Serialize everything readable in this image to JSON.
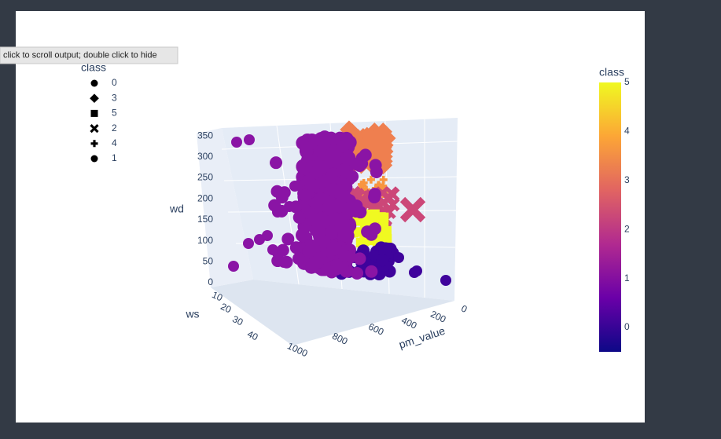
{
  "tooltip": "click to scroll output; double click to hide",
  "legend": {
    "title": "class",
    "items": [
      {
        "symbol": "circle",
        "label": "0"
      },
      {
        "symbol": "diamond",
        "label": "3"
      },
      {
        "symbol": "square",
        "label": "5"
      },
      {
        "symbol": "x",
        "label": "2"
      },
      {
        "symbol": "cross",
        "label": "4"
      },
      {
        "symbol": "circle",
        "label": "1"
      }
    ]
  },
  "axes": {
    "z": {
      "title": "wd",
      "ticks": [
        "0",
        "50",
        "100",
        "150",
        "200",
        "250",
        "300",
        "350"
      ]
    },
    "y": {
      "title": "ws",
      "ticks": [
        "10",
        "20",
        "30",
        "40"
      ]
    },
    "x": {
      "title": "pm_value",
      "ticks": [
        "0",
        "200",
        "400",
        "600",
        "800",
        "1000"
      ]
    }
  },
  "colorbar": {
    "title": "class",
    "ticks": [
      "0",
      "1",
      "2",
      "3",
      "4",
      "5"
    ]
  }
}
